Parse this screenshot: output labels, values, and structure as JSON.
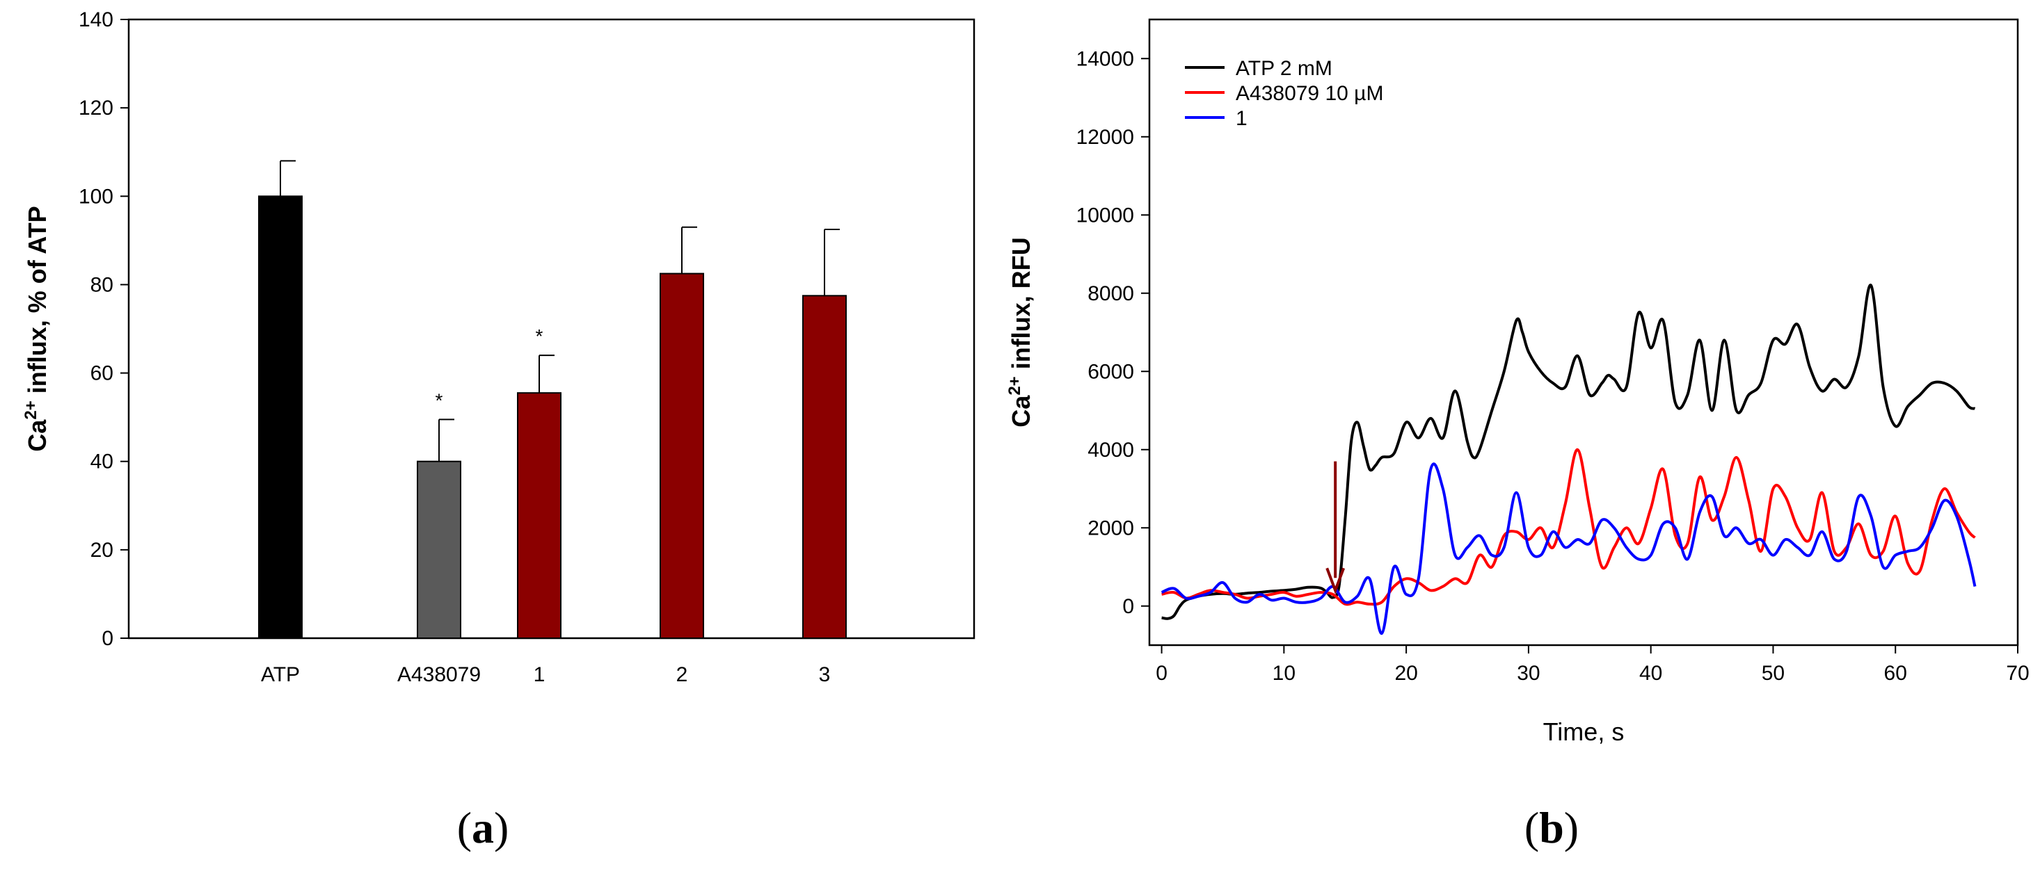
{
  "panels": [
    {
      "label_open": "(",
      "label_letter": "a",
      "label_close": ")"
    },
    {
      "label_open": "(",
      "label_letter": "b",
      "label_close": ")"
    }
  ],
  "chart_data": [
    {
      "type": "bar",
      "categories": [
        "ATP",
        "A438079",
        "1",
        "2",
        "3"
      ],
      "values": [
        100,
        40,
        55.5,
        82.5,
        77.5
      ],
      "errors": [
        8,
        9.5,
        8.5,
        10.5,
        15
      ],
      "significance": [
        "",
        "*",
        "*",
        "",
        ""
      ],
      "colors": [
        "#000000",
        "#5a5a5a",
        "#8b0000",
        "#8b0000",
        "#8b0000"
      ],
      "ylabel": {
        "prefix": "Ca",
        "sup": "2+",
        "suffix": " influx, % of  ATP"
      },
      "ylim": [
        0,
        140
      ],
      "yticks": [
        0,
        20,
        40,
        60,
        80,
        100,
        120,
        140
      ]
    },
    {
      "type": "line",
      "xlabel": "Time, s",
      "ylabel": {
        "prefix": "Ca",
        "sup": "2+",
        "suffix": " influx, RFU"
      },
      "xlim": [
        -1,
        70
      ],
      "ylim": [
        -1000,
        15000
      ],
      "xticks": [
        0,
        10,
        20,
        30,
        40,
        50,
        60,
        70
      ],
      "yticks": [
        0,
        2000,
        4000,
        6000,
        8000,
        10000,
        12000,
        14000
      ],
      "legend": "top-left",
      "annotation": {
        "type": "arrow",
        "x": 14.2,
        "y_from": 3700,
        "y_to": 400,
        "color": "#8b0000"
      },
      "series": [
        {
          "name": "ATP 2 mM",
          "color": "#000000",
          "x": [
            0,
            0.5,
            1,
            1.5,
            2,
            3,
            4,
            5,
            6,
            7,
            8,
            9,
            10,
            11,
            12,
            13,
            13.5,
            14,
            14.5,
            15,
            15.5,
            16,
            16.5,
            17,
            17.5,
            18,
            19,
            20,
            21,
            22,
            23,
            24,
            25,
            25.5,
            26,
            27,
            28,
            29,
            29.5,
            30,
            31,
            32,
            33,
            34,
            35,
            36,
            36.5,
            37,
            38,
            39,
            40,
            41,
            42,
            43,
            44,
            45,
            46,
            47,
            48,
            49,
            50,
            51,
            52,
            53,
            54,
            55,
            56,
            57,
            58,
            59,
            60,
            61,
            62,
            63,
            64,
            65,
            66,
            66.5
          ],
          "y": [
            -300,
            -320,
            -250,
            0,
            150,
            250,
            300,
            320,
            300,
            330,
            350,
            380,
            400,
            430,
            480,
            460,
            350,
            220,
            500,
            2200,
            4200,
            4700,
            4100,
            3500,
            3600,
            3800,
            3900,
            4700,
            4300,
            4800,
            4300,
            5500,
            4200,
            3800,
            4000,
            5000,
            6000,
            7300,
            7000,
            6500,
            6000,
            5700,
            5600,
            6400,
            5400,
            5700,
            5900,
            5800,
            5600,
            7500,
            6600,
            7300,
            5200,
            5400,
            6800,
            5000,
            6800,
            5000,
            5400,
            5700,
            6800,
            6700,
            7200,
            6100,
            5500,
            5800,
            5600,
            6400,
            8200,
            5600,
            4600,
            5100,
            5400,
            5700,
            5700,
            5500,
            5100,
            5050
          ]
        },
        {
          "name": "A438079 10 µM",
          "color": "#ff0000",
          "x": [
            0,
            1,
            2,
            3,
            4,
            5,
            6,
            7,
            8,
            9,
            10,
            11,
            12,
            13,
            14,
            15,
            16,
            17,
            18,
            19,
            20,
            21,
            22,
            23,
            24,
            25,
            26,
            27,
            28,
            29,
            30,
            31,
            32,
            33,
            34,
            35,
            36,
            37,
            38,
            39,
            40,
            41,
            42,
            43,
            44,
            45,
            46,
            47,
            48,
            49,
            50,
            51,
            52,
            53,
            54,
            55,
            56,
            57,
            58,
            59,
            60,
            61,
            62,
            63,
            64,
            65,
            66,
            66.5
          ],
          "y": [
            300,
            350,
            200,
            300,
            400,
            350,
            300,
            200,
            250,
            300,
            350,
            250,
            300,
            350,
            300,
            50,
            100,
            50,
            100,
            500,
            700,
            600,
            400,
            500,
            700,
            600,
            1300,
            1000,
            1800,
            1900,
            1700,
            2000,
            1500,
            2600,
            4000,
            2500,
            1000,
            1500,
            2000,
            1600,
            2500,
            3500,
            1800,
            1600,
            3300,
            2200,
            2800,
            3800,
            2700,
            1400,
            3000,
            2800,
            2000,
            1700,
            2900,
            1400,
            1500,
            2100,
            1300,
            1400,
            2300,
            1100,
            900,
            2200,
            3000,
            2400,
            1900,
            1750
          ]
        },
        {
          "name": "1",
          "color": "#0000ff",
          "x": [
            0,
            1,
            2,
            3,
            4,
            5,
            6,
            7,
            8,
            9,
            10,
            11,
            12,
            13,
            14,
            15,
            16,
            17,
            18,
            19,
            20,
            21,
            22,
            23,
            24,
            25,
            26,
            27,
            28,
            29,
            30,
            31,
            32,
            33,
            34,
            35,
            36,
            37,
            38,
            39,
            40,
            41,
            42,
            43,
            44,
            45,
            46,
            47,
            48,
            49,
            50,
            51,
            52,
            53,
            54,
            55,
            56,
            57,
            58,
            59,
            60,
            61,
            62,
            63,
            64,
            65,
            66,
            66.5
          ],
          "y": [
            350,
            450,
            200,
            250,
            350,
            600,
            200,
            100,
            300,
            150,
            200,
            100,
            100,
            200,
            500,
            100,
            250,
            700,
            -700,
            1000,
            300,
            700,
            3500,
            3000,
            1300,
            1500,
            1800,
            1300,
            1500,
            2900,
            1500,
            1300,
            1900,
            1500,
            1700,
            1600,
            2200,
            2000,
            1500,
            1200,
            1300,
            2100,
            2000,
            1200,
            2400,
            2800,
            1800,
            2000,
            1600,
            1700,
            1300,
            1700,
            1500,
            1300,
            1900,
            1200,
            1400,
            2800,
            2300,
            1000,
            1300,
            1400,
            1500,
            2000,
            2700,
            2300,
            1200,
            500
          ]
        }
      ]
    }
  ]
}
